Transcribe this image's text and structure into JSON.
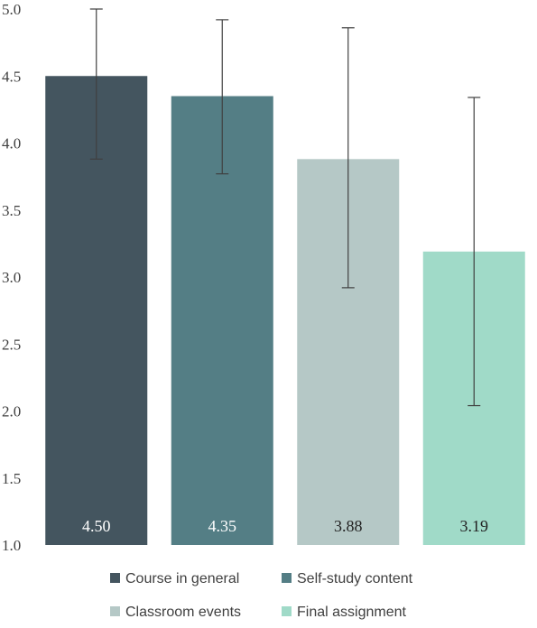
{
  "chart_data": {
    "type": "bar",
    "title": "",
    "xlabel": "",
    "ylabel": "",
    "ylim": [
      1.0,
      5.0
    ],
    "yticks": [
      "1.0",
      "1.5",
      "2.0",
      "2.5",
      "3.0",
      "3.5",
      "4.0",
      "4.5",
      "5.0"
    ],
    "grid": false,
    "legend_position": "bottom",
    "categories": [
      "Course in general",
      "Self-study content",
      "Classroom events",
      "Final assignment"
    ],
    "values": [
      4.5,
      4.35,
      3.88,
      3.19
    ],
    "data_labels": [
      "4.50",
      "4.35",
      "3.88",
      "3.19"
    ],
    "error_bars": [
      {
        "low": 3.88,
        "high": 5.0
      },
      {
        "low": 3.77,
        "high": 4.92
      },
      {
        "low": 2.92,
        "high": 4.86
      },
      {
        "low": 2.04,
        "high": 4.34
      }
    ],
    "colors": [
      "#44555f",
      "#547e85",
      "#b5c8c6",
      "#a0dac8"
    ],
    "label_colors": [
      "#ffffff",
      "#ffffff",
      "#222222",
      "#222222"
    ]
  }
}
